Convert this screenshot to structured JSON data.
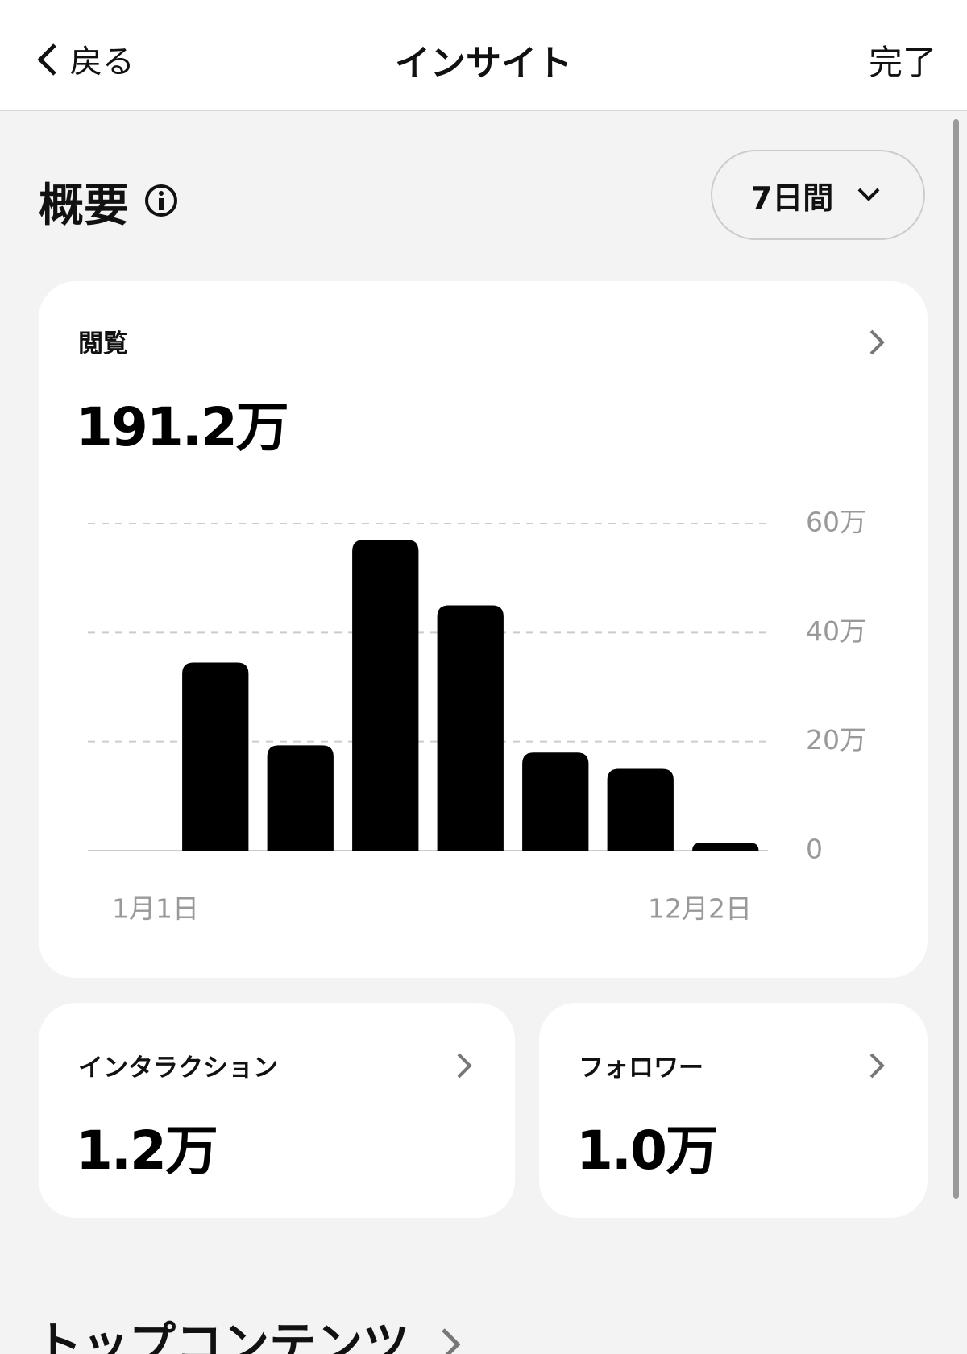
{
  "header": {
    "back": "戻る",
    "title": "インサイト",
    "done": "完了"
  },
  "overview": {
    "title": "概要",
    "period": "7日間"
  },
  "views_card": {
    "label": "閲覧",
    "total": "191.2万"
  },
  "chart_data": {
    "type": "bar",
    "categories": [
      "1月1日",
      null,
      null,
      null,
      null,
      null,
      null,
      "12月2日"
    ],
    "values": [
      0,
      34.5,
      19.3,
      57,
      45,
      18,
      15,
      1.4
    ],
    "color": "#000000",
    "ylim": [
      0,
      60
    ],
    "yticks": [
      0,
      {
        "value": 20,
        "label": "20万"
      },
      {
        "value": 40,
        "label": "40万"
      },
      {
        "value": 60,
        "label": "60万"
      }
    ],
    "grid": true
  },
  "interaction_card": {
    "label": "インタラクション",
    "total": "1.2万"
  },
  "followers_card": {
    "label": "フォロワー",
    "total": "1.0万"
  },
  "top_content": {
    "title": "トップコンテンツ"
  }
}
